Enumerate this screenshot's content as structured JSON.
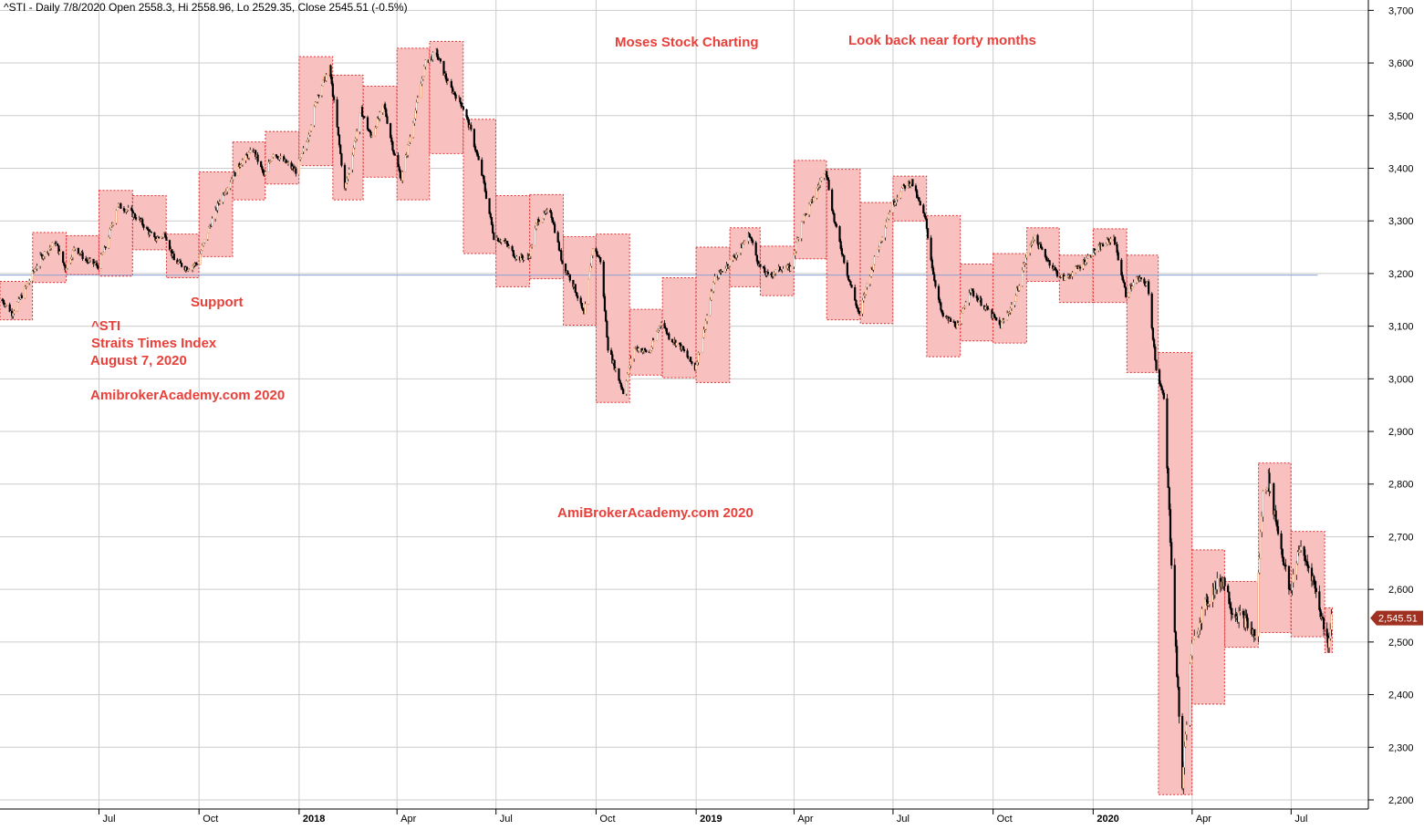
{
  "header": {
    "text": "^STI - Daily 7/8/2020 Open 2558.3, Hi 2558.96, Lo 2529.35, Close 2545.51 (-0.5%)"
  },
  "annotations": {
    "moses": "Moses Stock Charting",
    "lookback": "Look back near forty months",
    "support": "Support",
    "symbol": "^STI",
    "name": "Straits Times Index",
    "date": "August 7, 2020",
    "watermark1": "AmibrokerAcademy.com  2020",
    "watermark2": "AmiBrokerAcademy.com  2020"
  },
  "colors": {
    "box_fill": "#f9c0c0",
    "box_border": "#e03030",
    "annotation": "#e8403a",
    "candle_down": "#000000",
    "candle_up": "#e8a070",
    "support_line": "#8aa0d0",
    "grid": "#cccccc",
    "last_price_badge": "#a0301f"
  },
  "chart_data": {
    "type": "candlestick",
    "title": "^STI - Daily 7/8/2020",
    "ylim": [
      2180,
      3720
    ],
    "y_ticks": [
      2200,
      2300,
      2400,
      2500,
      2600,
      2700,
      2800,
      2900,
      3000,
      3100,
      3200,
      3300,
      3400,
      3500,
      3600,
      3700
    ],
    "y_tick_labels": [
      "2,200",
      "2,300",
      "2,400",
      "2,500",
      "2,600",
      "2,700",
      "2,800",
      "2,900",
      "3,000",
      "3,100",
      "3,200",
      "3,300",
      "3,400",
      "3,500",
      "3,600",
      "3,700"
    ],
    "x_range": [
      "2017-04-01",
      "2020-09-10"
    ],
    "x_ticks": [
      {
        "date": "2017-07-01",
        "label": "Jul",
        "bold": false
      },
      {
        "date": "2017-10-01",
        "label": "Oct",
        "bold": false
      },
      {
        "date": "2018-01-01",
        "label": "2018",
        "bold": true
      },
      {
        "date": "2018-04-01",
        "label": "Apr",
        "bold": false
      },
      {
        "date": "2018-07-01",
        "label": "Jul",
        "bold": false
      },
      {
        "date": "2018-10-01",
        "label": "Oct",
        "bold": false
      },
      {
        "date": "2019-01-01",
        "label": "2019",
        "bold": true
      },
      {
        "date": "2019-04-01",
        "label": "Apr",
        "bold": false
      },
      {
        "date": "2019-07-01",
        "label": "Jul",
        "bold": false
      },
      {
        "date": "2019-10-01",
        "label": "Oct",
        "bold": false
      },
      {
        "date": "2020-01-01",
        "label": "2020",
        "bold": true
      },
      {
        "date": "2020-04-01",
        "label": "Apr",
        "bold": false
      },
      {
        "date": "2020-07-01",
        "label": "Jul",
        "bold": false
      }
    ],
    "grid": true,
    "support_level": 3197,
    "support_range": [
      "2017-04-01",
      "2020-08-07"
    ],
    "last_close": 2545.51,
    "last_close_label": "2,545.51",
    "monthly_boxes": [
      {
        "start": "2017-04-01",
        "end": "2017-04-30",
        "high": 3185,
        "low": 3112
      },
      {
        "start": "2017-05-01",
        "end": "2017-05-31",
        "high": 3278,
        "low": 3183
      },
      {
        "start": "2017-06-01",
        "end": "2017-06-30",
        "high": 3272,
        "low": 3198
      },
      {
        "start": "2017-07-01",
        "end": "2017-07-31",
        "high": 3358,
        "low": 3195
      },
      {
        "start": "2017-08-01",
        "end": "2017-08-31",
        "high": 3348,
        "low": 3245
      },
      {
        "start": "2017-09-01",
        "end": "2017-09-30",
        "high": 3275,
        "low": 3192
      },
      {
        "start": "2017-10-01",
        "end": "2017-10-31",
        "high": 3393,
        "low": 3232
      },
      {
        "start": "2017-11-01",
        "end": "2017-11-30",
        "high": 3450,
        "low": 3340
      },
      {
        "start": "2017-12-01",
        "end": "2017-12-31",
        "high": 3470,
        "low": 3370
      },
      {
        "start": "2018-01-01",
        "end": "2018-01-31",
        "high": 3612,
        "low": 3405
      },
      {
        "start": "2018-02-01",
        "end": "2018-02-28",
        "high": 3577,
        "low": 3340
      },
      {
        "start": "2018-03-01",
        "end": "2018-03-31",
        "high": 3556,
        "low": 3383
      },
      {
        "start": "2018-04-01",
        "end": "2018-04-30",
        "high": 3628,
        "low": 3340
      },
      {
        "start": "2018-05-01",
        "end": "2018-05-31",
        "high": 3641,
        "low": 3428
      },
      {
        "start": "2018-06-01",
        "end": "2018-06-30",
        "high": 3493,
        "low": 3238
      },
      {
        "start": "2018-07-01",
        "end": "2018-07-31",
        "high": 3348,
        "low": 3175
      },
      {
        "start": "2018-08-01",
        "end": "2018-08-31",
        "high": 3350,
        "low": 3190
      },
      {
        "start": "2018-09-01",
        "end": "2018-09-30",
        "high": 3270,
        "low": 3102
      },
      {
        "start": "2018-10-01",
        "end": "2018-10-31",
        "high": 3275,
        "low": 2955
      },
      {
        "start": "2018-11-01",
        "end": "2018-11-30",
        "high": 3132,
        "low": 3007
      },
      {
        "start": "2018-12-01",
        "end": "2018-12-31",
        "high": 3192,
        "low": 3002
      },
      {
        "start": "2019-01-01",
        "end": "2019-01-31",
        "high": 3250,
        "low": 2993
      },
      {
        "start": "2019-02-01",
        "end": "2019-02-28",
        "high": 3287,
        "low": 3175
      },
      {
        "start": "2019-03-01",
        "end": "2019-03-31",
        "high": 3252,
        "low": 3158
      },
      {
        "start": "2019-04-01",
        "end": "2019-04-30",
        "high": 3415,
        "low": 3228
      },
      {
        "start": "2019-05-01",
        "end": "2019-05-31",
        "high": 3398,
        "low": 3112
      },
      {
        "start": "2019-06-01",
        "end": "2019-06-30",
        "high": 3335,
        "low": 3105
      },
      {
        "start": "2019-07-01",
        "end": "2019-07-31",
        "high": 3385,
        "low": 3300
      },
      {
        "start": "2019-08-01",
        "end": "2019-08-31",
        "high": 3310,
        "low": 3042
      },
      {
        "start": "2019-09-01",
        "end": "2019-09-30",
        "high": 3218,
        "low": 3072
      },
      {
        "start": "2019-10-01",
        "end": "2019-10-31",
        "high": 3238,
        "low": 3068
      },
      {
        "start": "2019-11-01",
        "end": "2019-11-30",
        "high": 3287,
        "low": 3185
      },
      {
        "start": "2019-12-01",
        "end": "2019-12-31",
        "high": 3235,
        "low": 3145
      },
      {
        "start": "2020-01-01",
        "end": "2020-01-31",
        "high": 3285,
        "low": 3145
      },
      {
        "start": "2020-02-01",
        "end": "2020-02-29",
        "high": 3235,
        "low": 3012
      },
      {
        "start": "2020-03-01",
        "end": "2020-03-31",
        "high": 3050,
        "low": 2210
      },
      {
        "start": "2020-04-01",
        "end": "2020-04-30",
        "high": 2675,
        "low": 2382
      },
      {
        "start": "2020-05-01",
        "end": "2020-05-31",
        "high": 2615,
        "low": 2490
      },
      {
        "start": "2020-06-01",
        "end": "2020-06-30",
        "high": 2840,
        "low": 2518
      },
      {
        "start": "2020-07-01",
        "end": "2020-07-31",
        "high": 2710,
        "low": 2510
      },
      {
        "start": "2020-08-01",
        "end": "2020-08-07",
        "high": 2565,
        "low": 2480
      }
    ],
    "price_path": [
      [
        "2017-04-03",
        3150
      ],
      [
        "2017-04-12",
        3125
      ],
      [
        "2017-04-24",
        3170
      ],
      [
        "2017-05-08",
        3230
      ],
      [
        "2017-05-22",
        3260
      ],
      [
        "2017-05-31",
        3210
      ],
      [
        "2017-06-09",
        3250
      ],
      [
        "2017-06-19",
        3225
      ],
      [
        "2017-06-30",
        3215
      ],
      [
        "2017-07-07",
        3250
      ],
      [
        "2017-07-18",
        3330
      ],
      [
        "2017-07-28",
        3320
      ],
      [
        "2017-08-08",
        3300
      ],
      [
        "2017-08-21",
        3265
      ],
      [
        "2017-08-31",
        3275
      ],
      [
        "2017-09-08",
        3225
      ],
      [
        "2017-09-20",
        3210
      ],
      [
        "2017-09-29",
        3220
      ],
      [
        "2017-10-09",
        3280
      ],
      [
        "2017-10-20",
        3340
      ],
      [
        "2017-10-31",
        3380
      ],
      [
        "2017-11-08",
        3410
      ],
      [
        "2017-11-20",
        3435
      ],
      [
        "2017-11-30",
        3385
      ],
      [
        "2017-12-08",
        3430
      ],
      [
        "2017-12-20",
        3410
      ],
      [
        "2017-12-29",
        3395
      ],
      [
        "2018-01-08",
        3450
      ],
      [
        "2018-01-18",
        3540
      ],
      [
        "2018-01-29",
        3590
      ],
      [
        "2018-02-06",
        3460
      ],
      [
        "2018-02-12",
        3360
      ],
      [
        "2018-02-27",
        3510
      ],
      [
        "2018-03-08",
        3460
      ],
      [
        "2018-03-20",
        3520
      ],
      [
        "2018-03-29",
        3430
      ],
      [
        "2018-04-05",
        3380
      ],
      [
        "2018-04-16",
        3490
      ],
      [
        "2018-04-27",
        3600
      ],
      [
        "2018-05-07",
        3620
      ],
      [
        "2018-05-18",
        3560
      ],
      [
        "2018-05-31",
        3520
      ],
      [
        "2018-06-08",
        3470
      ],
      [
        "2018-06-19",
        3380
      ],
      [
        "2018-06-29",
        3270
      ],
      [
        "2018-07-09",
        3260
      ],
      [
        "2018-07-20",
        3230
      ],
      [
        "2018-07-31",
        3230
      ],
      [
        "2018-08-08",
        3300
      ],
      [
        "2018-08-20",
        3320
      ],
      [
        "2018-08-31",
        3220
      ],
      [
        "2018-09-10",
        3180
      ],
      [
        "2018-09-20",
        3120
      ],
      [
        "2018-09-28",
        3250
      ],
      [
        "2018-10-05",
        3225
      ],
      [
        "2018-10-12",
        3060
      ],
      [
        "2018-10-26",
        2975
      ],
      [
        "2018-11-05",
        3060
      ],
      [
        "2018-11-19",
        3050
      ],
      [
        "2018-11-30",
        3110
      ],
      [
        "2018-12-07",
        3080
      ],
      [
        "2018-12-18",
        3060
      ],
      [
        "2018-12-31",
        3020
      ],
      [
        "2019-01-08",
        3090
      ],
      [
        "2019-01-18",
        3190
      ],
      [
        "2019-01-31",
        3220
      ],
      [
        "2019-02-08",
        3240
      ],
      [
        "2019-02-19",
        3275
      ],
      [
        "2019-02-28",
        3215
      ],
      [
        "2019-03-08",
        3195
      ],
      [
        "2019-03-20",
        3210
      ],
      [
        "2019-03-29",
        3210
      ],
      [
        "2019-04-08",
        3300
      ],
      [
        "2019-04-18",
        3340
      ],
      [
        "2019-04-30",
        3400
      ],
      [
        "2019-05-08",
        3300
      ],
      [
        "2019-05-20",
        3200
      ],
      [
        "2019-05-31",
        3120
      ],
      [
        "2019-06-07",
        3180
      ],
      [
        "2019-06-19",
        3260
      ],
      [
        "2019-06-28",
        3320
      ],
      [
        "2019-07-08",
        3360
      ],
      [
        "2019-07-18",
        3375
      ],
      [
        "2019-07-31",
        3300
      ],
      [
        "2019-08-07",
        3200
      ],
      [
        "2019-08-15",
        3120
      ],
      [
        "2019-08-30",
        3100
      ],
      [
        "2019-09-09",
        3170
      ],
      [
        "2019-09-18",
        3150
      ],
      [
        "2019-09-30",
        3120
      ],
      [
        "2019-10-08",
        3100
      ],
      [
        "2019-10-21",
        3150
      ],
      [
        "2019-10-31",
        3230
      ],
      [
        "2019-11-07",
        3270
      ],
      [
        "2019-11-19",
        3230
      ],
      [
        "2019-11-29",
        3200
      ],
      [
        "2019-12-06",
        3190
      ],
      [
        "2019-12-18",
        3210
      ],
      [
        "2019-12-31",
        3240
      ],
      [
        "2020-01-08",
        3250
      ],
      [
        "2020-01-20",
        3270
      ],
      [
        "2020-01-31",
        3160
      ],
      [
        "2020-02-10",
        3190
      ],
      [
        "2020-02-20",
        3180
      ],
      [
        "2020-02-28",
        3020
      ],
      [
        "2020-03-06",
        2960
      ],
      [
        "2020-03-12",
        2700
      ],
      [
        "2020-03-23",
        2230
      ],
      [
        "2020-03-31",
        2480
      ],
      [
        "2020-04-09",
        2550
      ],
      [
        "2020-04-20",
        2600
      ],
      [
        "2020-04-30",
        2620
      ],
      [
        "2020-05-08",
        2560
      ],
      [
        "2020-05-20",
        2540
      ],
      [
        "2020-05-29",
        2510
      ],
      [
        "2020-06-05",
        2780
      ],
      [
        "2020-06-10",
        2810
      ],
      [
        "2020-06-30",
        2590
      ],
      [
        "2020-07-08",
        2680
      ],
      [
        "2020-07-20",
        2630
      ],
      [
        "2020-07-31",
        2530
      ],
      [
        "2020-08-04",
        2500
      ],
      [
        "2020-08-07",
        2545.51
      ]
    ]
  }
}
